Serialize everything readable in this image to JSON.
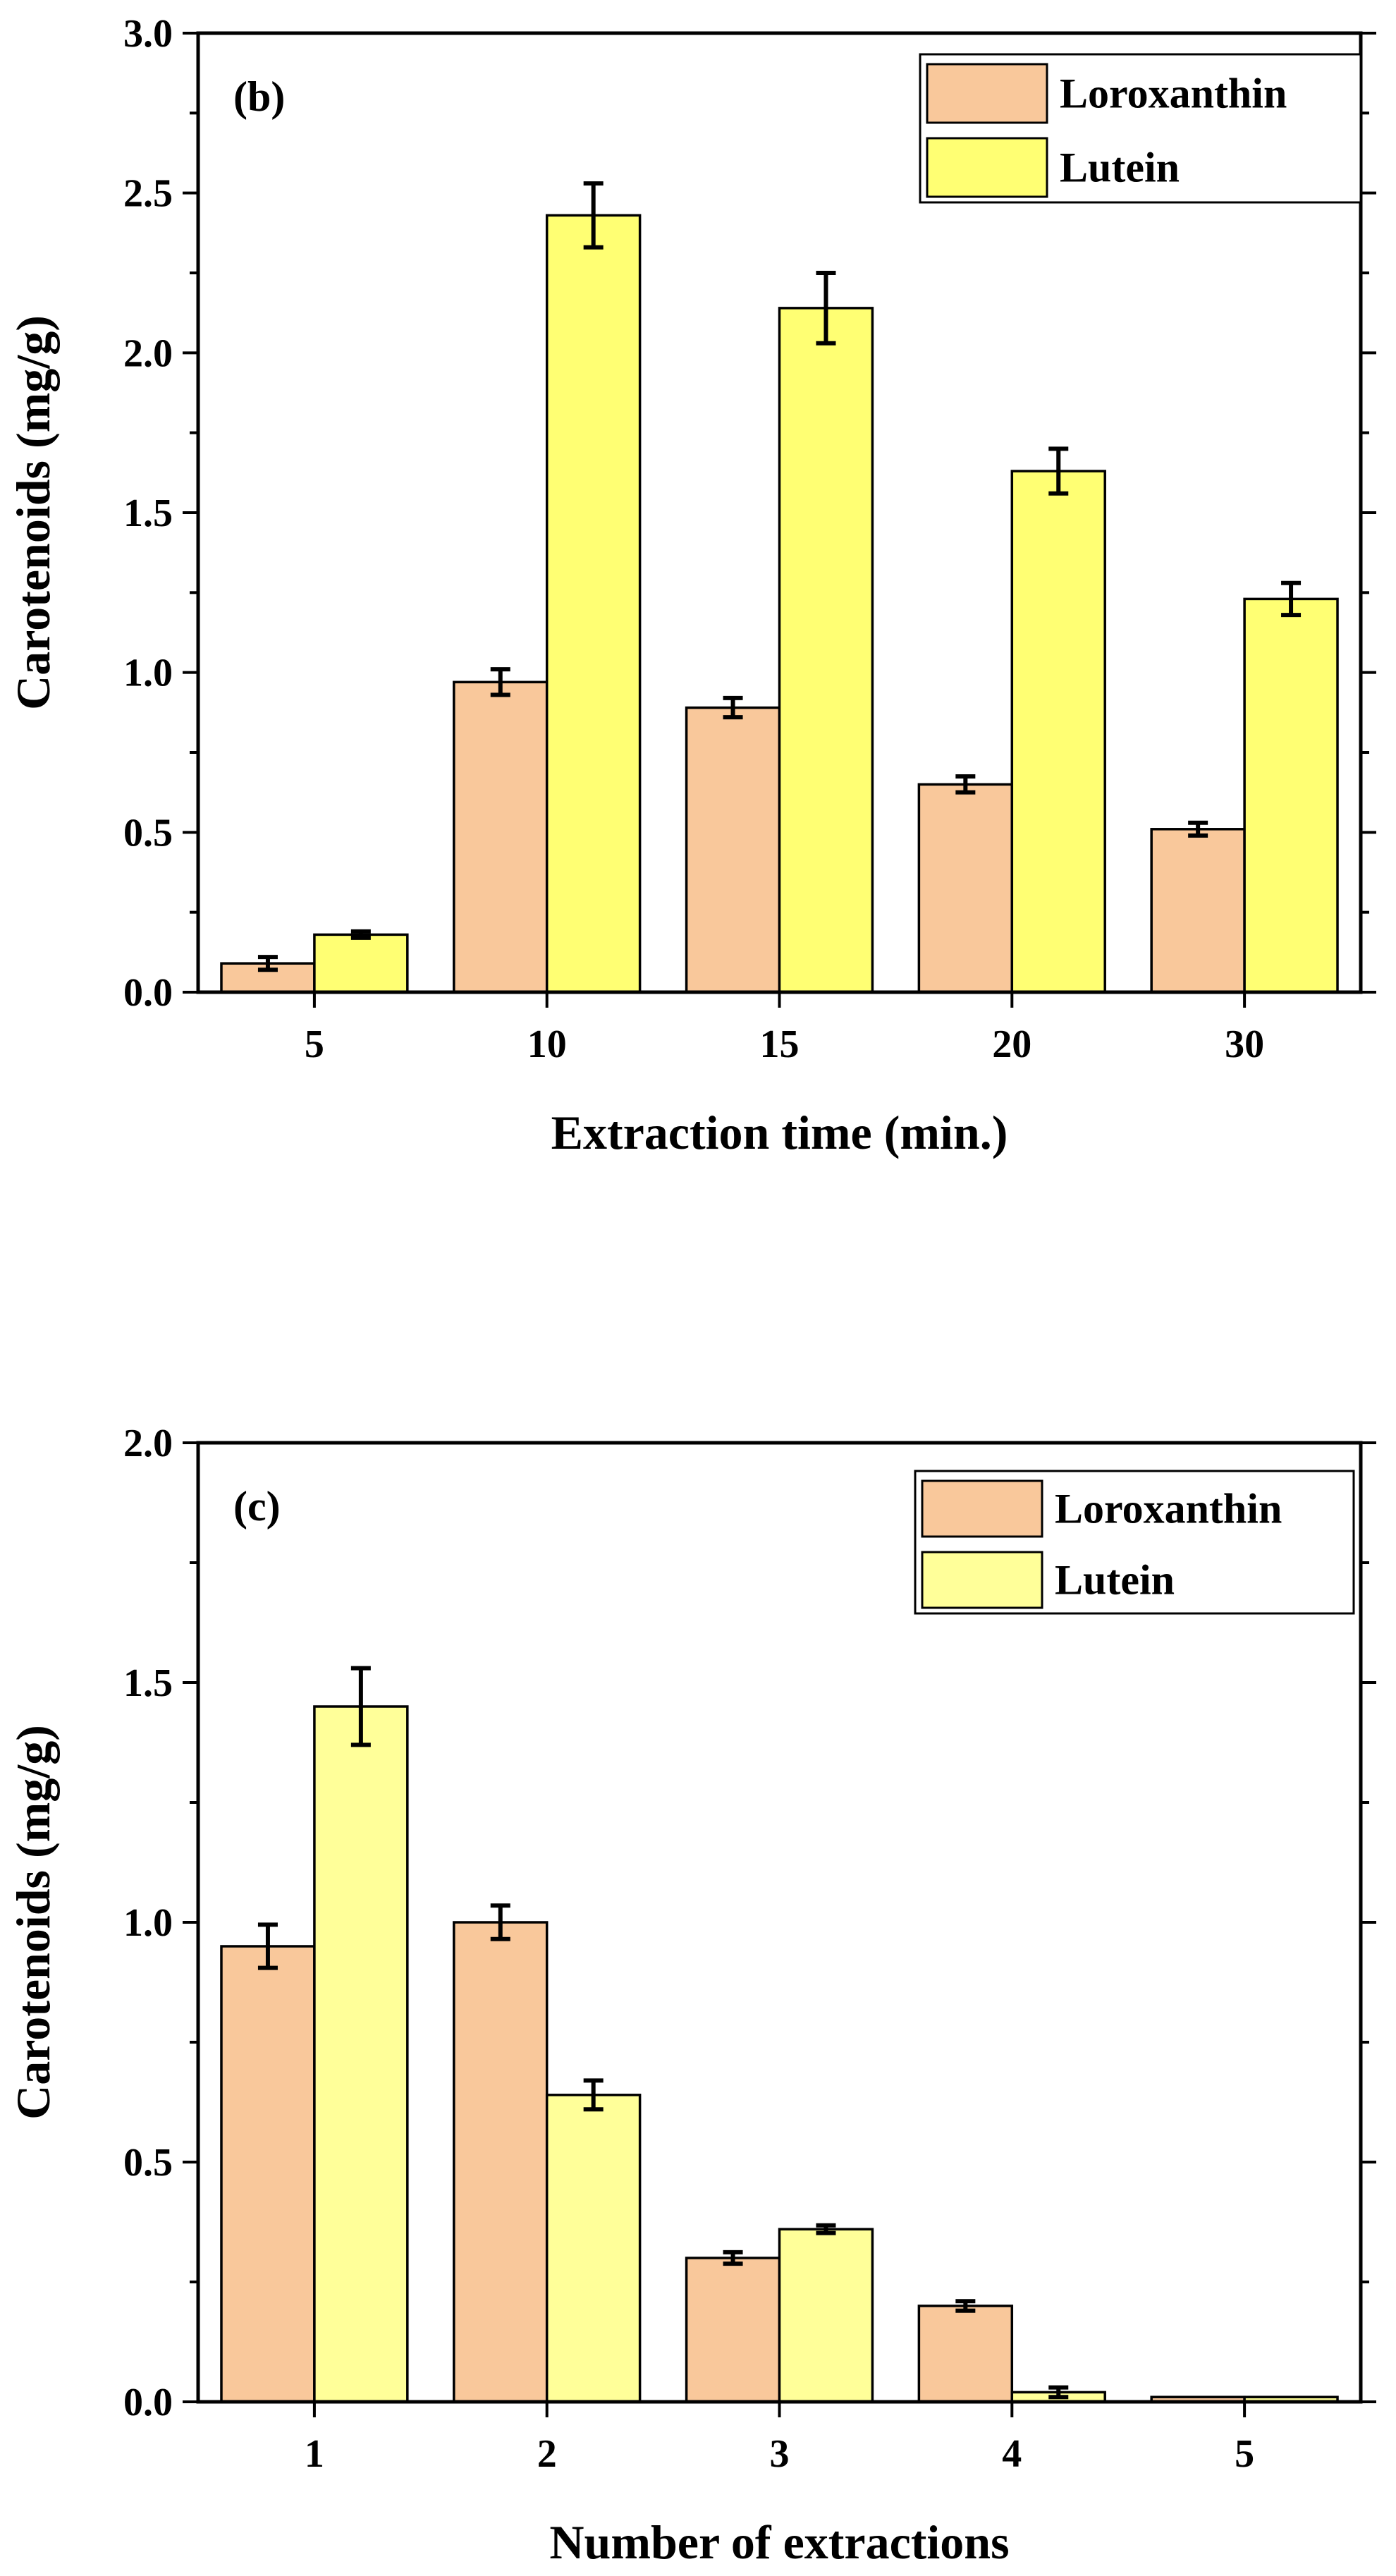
{
  "chart_data": [
    {
      "type": "bar",
      "panel_label": "(b)",
      "xlabel": "Extraction time (min.)",
      "ylabel": "Carotenoids (mg/g)",
      "ylim": [
        0,
        3.0
      ],
      "yticks": [
        "0.0",
        "0.5",
        "1.0",
        "1.5",
        "2.0",
        "2.5",
        "3.0"
      ],
      "categories": [
        "5",
        "10",
        "15",
        "20",
        "30"
      ],
      "legend_position": "top-right",
      "series": [
        {
          "name": "Loroxanthin",
          "color": "#F9C89B",
          "values": [
            0.09,
            0.97,
            0.89,
            0.65,
            0.51
          ],
          "errors": [
            0.02,
            0.04,
            0.03,
            0.025,
            0.02
          ]
        },
        {
          "name": "Lutein",
          "color": "#FFFF73",
          "values": [
            0.18,
            2.43,
            2.14,
            1.63,
            1.23
          ],
          "errors": [
            0.01,
            0.1,
            0.11,
            0.07,
            0.05
          ]
        }
      ]
    },
    {
      "type": "bar",
      "panel_label": "(c)",
      "xlabel": "Number of extractions",
      "ylabel": "Carotenoids (mg/g)",
      "ylim": [
        0,
        2.0
      ],
      "yticks": [
        "0.0",
        "0.5",
        "1.0",
        "1.5",
        "2.0"
      ],
      "categories": [
        "1",
        "2",
        "3",
        "4",
        "5"
      ],
      "legend_position": "top-right",
      "series": [
        {
          "name": "Loroxanthin",
          "color": "#F9C89B",
          "values": [
            0.95,
            1.0,
            0.3,
            0.2,
            0.01
          ],
          "errors": [
            0.045,
            0.035,
            0.012,
            0.01,
            0
          ]
        },
        {
          "name": "Lutein",
          "color": "#FFFF99",
          "values": [
            1.45,
            0.64,
            0.36,
            0.02,
            0.01
          ],
          "errors": [
            0.08,
            0.03,
            0.008,
            0.01,
            0
          ]
        }
      ]
    }
  ]
}
